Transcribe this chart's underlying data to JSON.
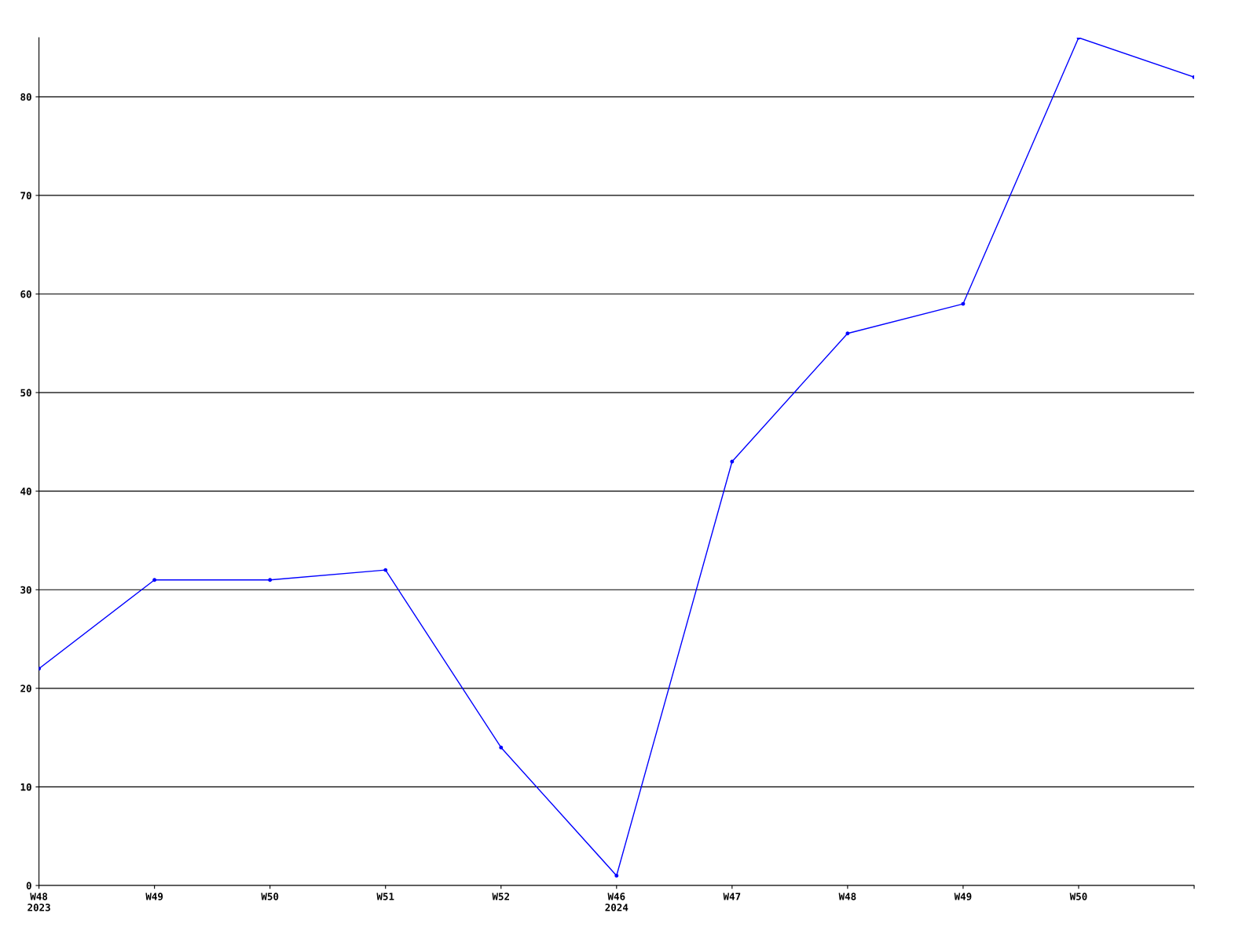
{
  "chart_data": {
    "type": "line",
    "categories": [
      "W48\n2023",
      "W49",
      "W50",
      "W51",
      "W52",
      "W46\n2024",
      "W47",
      "W48",
      "W49",
      "W50",
      null
    ],
    "series": [
      {
        "color": "#0000ff",
        "values": [
          22,
          31,
          31,
          32,
          14,
          1,
          43,
          56,
          59,
          86,
          82
        ]
      }
    ],
    "ylim": [
      0,
      86
    ],
    "yticks": [
      0,
      10,
      20,
      30,
      40,
      50,
      60,
      70,
      80
    ],
    "grid": "y",
    "marker": "circle",
    "line_style": "solid",
    "legend": false
  }
}
